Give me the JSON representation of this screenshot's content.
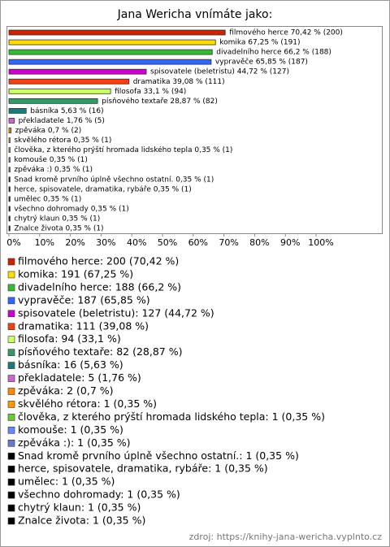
{
  "chart_data": {
    "type": "bar",
    "title": "Jana Wericha vnímáte jako:",
    "values": [
      70.42,
      67.25,
      66.2,
      65.85,
      44.72,
      39.08,
      33.1,
      28.87,
      5.63,
      1.76,
      0.7,
      0.35,
      0.35,
      0.35,
      0.35,
      0.35,
      0.35,
      0.35,
      0.35,
      0.35,
      0.35
    ],
    "value_labels": [
      "filmového herce 70,42 % (200)",
      "komika 67,25 % (191)",
      "divadelního herce 66,2 % (188)",
      "vypravěče 65,85 % (187)",
      "spisovatele (beletristu) 44,72 % (127)",
      "dramatika 39,08 % (111)",
      "filosofa 33,1 % (94)",
      "písňového textaře 28,87 % (82)",
      "básníka 5,63 % (16)",
      "překladatele 1,76 % (5)",
      "zpěváka 0,7 % (2)",
      "skvělého rétora 0,35 % (1)",
      "člověka, z kterého prýští hromada lidského tepla 0,35 % (1)",
      "komouše 0,35 % (1)",
      "zpěváka :) 0,35 % (1)",
      "Snad kromě prvního úplně všechno ostatní. 0,35 % (1)",
      "herce, spisovatele, dramatika, rybáře 0,35 % (1)",
      "umělec 0,35 % (1)",
      "všechno dohromady 0,35 % (1)",
      "chytrý klaun 0,35 % (1)",
      "Znalce života 0,35 % (1)"
    ],
    "legend": [
      "filmového herce: 200 (70,42 %)",
      "komika: 191 (67,25 %)",
      "divadelního herce: 188 (66,2 %)",
      "vypravěče: 187 (65,85 %)",
      "spisovatele (beletristu): 127 (44,72 %)",
      "dramatika: 111 (39,08 %)",
      "filosofa: 94 (33,1 %)",
      "písňového textaře: 82 (28,87 %)",
      "básníka: 16 (5,63 %)",
      "překladatele: 5 (1,76 %)",
      "zpěváka: 2 (0,7 %)",
      "skvělého rétora: 1 (0,35 %)",
      "člověka, z kterého prýští hromada lidského tepla: 1 (0,35 %)",
      "komouše: 1 (0,35 %)",
      "zpěváka :): 1 (0,35 %)",
      "Snad kromě prvního úplně všechno ostatní.: 1 (0,35 %)",
      "herce, spisovatele, dramatika, rybáře: 1 (0,35 %)",
      "umělec: 1 (0,35 %)",
      "všechno dohromady: 1 (0,35 %)",
      "chytrý klaun: 1 (0,35 %)",
      "Znalce života: 1 (0,35 %)"
    ],
    "colors": [
      "#cc2200",
      "#ffdd00",
      "#33bb33",
      "#3366ff",
      "#cc00cc",
      "#ee4411",
      "#ccff66",
      "#339966",
      "#1a7a7a",
      "#cc66cc",
      "#ff8800",
      "#ff9900",
      "#66cc33",
      "#6688ff",
      "#6677cc",
      "#000000",
      "#000000",
      "#000000",
      "#000000",
      "#000000",
      "#000000"
    ],
    "xlim": [
      0,
      100
    ],
    "xticks": [
      {
        "value": 0,
        "label": "0%"
      },
      {
        "value": 10,
        "label": "10%"
      },
      {
        "value": 20,
        "label": "20%"
      },
      {
        "value": 30,
        "label": "30%"
      },
      {
        "value": 40,
        "label": "40%"
      },
      {
        "value": 50,
        "label": "50%"
      },
      {
        "value": 60,
        "label": "60%"
      },
      {
        "value": 70,
        "label": "70%"
      },
      {
        "value": 80,
        "label": "80%"
      },
      {
        "value": 90,
        "label": "90%"
      },
      {
        "value": 100,
        "label": "100%"
      }
    ],
    "source": "zdroj: https://knihy-jana-wericha.vyplnto.cz"
  }
}
